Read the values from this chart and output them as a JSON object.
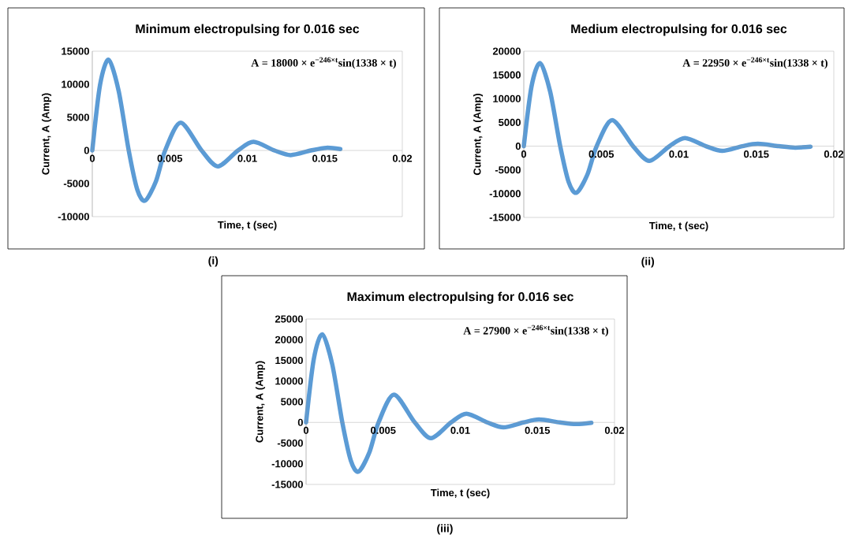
{
  "chart_data": [
    {
      "type": "line",
      "title": "Minimum electropulsing for 0.016 sec",
      "xlabel": "Time, t (sec)",
      "ylabel": "Current, A (Amp)",
      "annotations": [
        "A = 18000 × e$^{−246×t}$sin(1338 × t)",
        "(i)"
      ],
      "x": [
        0,
        0.0005,
        0.00105,
        0.0017,
        0.00235,
        0.0029,
        0.0034,
        0.0041,
        0.0047,
        0.0057,
        0.00705,
        0.0081,
        0.0094,
        0.0104,
        0.01175,
        0.0128,
        0.0141,
        0.0151,
        0.016
      ],
      "series": [
        {
          "color": "#5b9bd5",
          "values": [
            0,
            9900,
            13700,
            9000,
            0,
            -5900,
            -7600,
            -4700,
            0,
            4200,
            0,
            -2400,
            0,
            1300,
            0,
            -700,
            0,
            400,
            200
          ]
        }
      ],
      "xlim": [
        0,
        0.02
      ],
      "ylim": [
        -10000,
        15000
      ],
      "xticks": [
        0,
        0.005,
        0.01,
        0.015,
        0.02
      ],
      "yticks": [
        -10000,
        -5000,
        0,
        5000,
        10000,
        15000
      ]
    },
    {
      "type": "line",
      "title": "Medium electropulsing for 0.016 sec",
      "xlabel": "Time, t (sec)",
      "ylabel": "Current, A (Amp)",
      "annotations": [
        "A = 22950 × e$^{−246×t}$sin(1338 × t)",
        "(ii)"
      ],
      "x": [
        0,
        0.0005,
        0.00105,
        0.0017,
        0.00235,
        0.0029,
        0.0034,
        0.0041,
        0.0047,
        0.0057,
        0.00705,
        0.0081,
        0.0094,
        0.0104,
        0.01175,
        0.0128,
        0.0141,
        0.0151,
        0.01645,
        0.0175,
        0.0185
      ],
      "series": [
        {
          "color": "#5b9bd5",
          "values": [
            0,
            12600,
            17500,
            11500,
            0,
            -7600,
            -9800,
            -6000,
            0,
            5500,
            0,
            -3100,
            0,
            1700,
            0,
            -1000,
            0,
            500,
            0,
            -300,
            -100
          ]
        }
      ],
      "xlim": [
        0,
        0.02
      ],
      "ylim": [
        -15000,
        20000
      ],
      "xticks": [
        0,
        0.005,
        0.01,
        0.015,
        0.02
      ],
      "yticks": [
        -15000,
        -10000,
        -5000,
        0,
        5000,
        10000,
        15000,
        20000
      ]
    },
    {
      "type": "line",
      "title": "Maximum electropulsing for 0.016 sec",
      "xlabel": "Time, t (sec)",
      "ylabel": "Current, A (Amp)",
      "annotations": [
        "A = 27900 × e$^{−246×t}$sin(1338 × t)",
        "(iii)"
      ],
      "x": [
        0,
        0.0005,
        0.00105,
        0.0017,
        0.00235,
        0.0029,
        0.0034,
        0.0041,
        0.0047,
        0.0057,
        0.00705,
        0.0081,
        0.0094,
        0.0104,
        0.01175,
        0.0128,
        0.0141,
        0.0151,
        0.01645,
        0.0175,
        0.0185
      ],
      "series": [
        {
          "color": "#5b9bd5",
          "values": [
            0,
            15300,
            21300,
            14000,
            0,
            -9200,
            -11900,
            -7300,
            0,
            6700,
            0,
            -3800,
            0,
            2100,
            0,
            -1200,
            0,
            700,
            0,
            -400,
            -100
          ]
        }
      ],
      "xlim": [
        0,
        0.02
      ],
      "ylim": [
        -15000,
        25000
      ],
      "xticks": [
        0,
        0.005,
        0.01,
        0.015,
        0.02
      ],
      "yticks": [
        -15000,
        -10000,
        -5000,
        0,
        5000,
        10000,
        15000,
        20000,
        25000
      ]
    }
  ]
}
